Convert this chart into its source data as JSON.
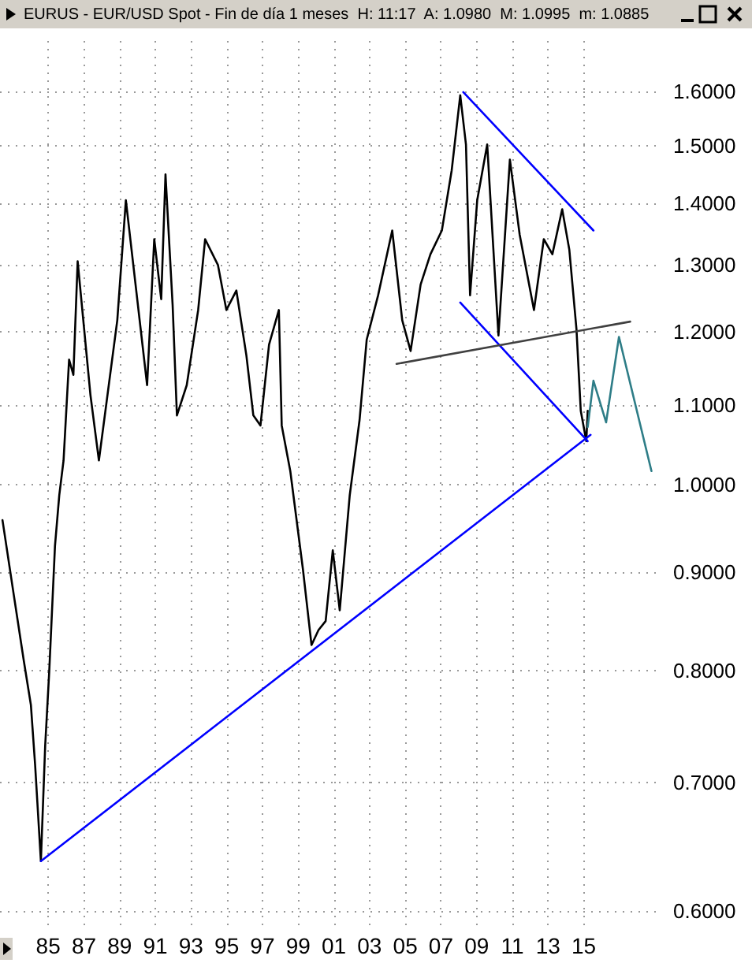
{
  "chart_data": {
    "type": "line",
    "title": "EURUS - EUR/USD Spot - Fin de día 1 meses  H: 11:17  A: 1.0980  M: 1.0995  m: 1.0885",
    "log": "y",
    "grid": true,
    "xlim": [
      1982.3,
      2019.3
    ],
    "xticks": [
      {
        "value": 1985,
        "label": "85"
      },
      {
        "value": 1987,
        "label": "87"
      },
      {
        "value": 1989,
        "label": "89"
      },
      {
        "value": 1991,
        "label": "91"
      },
      {
        "value": 1993,
        "label": "93"
      },
      {
        "value": 1995,
        "label": "95"
      },
      {
        "value": 1997,
        "label": "97"
      },
      {
        "value": 1999,
        "label": "99"
      },
      {
        "value": 2001,
        "label": "01"
      },
      {
        "value": 2003,
        "label": "03"
      },
      {
        "value": 2005,
        "label": "05"
      },
      {
        "value": 2007,
        "label": "07"
      },
      {
        "value": 2009,
        "label": "09"
      },
      {
        "value": 2011,
        "label": "11"
      },
      {
        "value": 2013,
        "label": "13"
      },
      {
        "value": 2015,
        "label": "15"
      }
    ],
    "ylim": [
      0.59,
      1.7
    ],
    "yticks": [
      {
        "value": 0.6,
        "label": "0.6000"
      },
      {
        "value": 0.7,
        "label": "0.7000"
      },
      {
        "value": 0.8,
        "label": "0.8000"
      },
      {
        "value": 0.9,
        "label": "0.9000"
      },
      {
        "value": 1.0,
        "label": "1.0000"
      },
      {
        "value": 1.1,
        "label": "1.1000"
      },
      {
        "value": 1.2,
        "label": "1.2000"
      },
      {
        "value": 1.3,
        "label": "1.3000"
      },
      {
        "value": 1.4,
        "label": "1.4000"
      },
      {
        "value": 1.5,
        "label": "1.5000"
      },
      {
        "value": 1.6,
        "label": "1.6000"
      }
    ],
    "series": [
      {
        "color": "#000000",
        "x": [
          1982.44,
          1983.08,
          1983.63,
          1984.03,
          1984.27,
          1984.59,
          1984.83,
          1985.06,
          1985.38,
          1985.62,
          1985.86,
          1986.17,
          1986.41,
          1986.65,
          1987.37,
          1987.84,
          1988.87,
          1989.35,
          1990.22,
          1990.54,
          1990.94,
          1991.33,
          1991.57,
          1991.97,
          1992.21,
          1992.76,
          1993.4,
          1993.79,
          1994.51,
          1994.98,
          1995.54,
          1996.1,
          1996.49,
          1996.89,
          1997.37,
          1997.92,
          1998.08,
          1998.56,
          1999.27,
          1999.75,
          2000.14,
          2000.54,
          2000.94,
          2001.33,
          2001.89,
          2002.44,
          2002.84,
          2003.48,
          2004.27,
          2004.83,
          2005.3,
          2005.86,
          2006.41,
          2007.05,
          2007.6,
          2008.08,
          2008.4,
          2008.63,
          2009.03,
          2009.59,
          2010.22,
          2010.86,
          2011.41,
          2012.21,
          2012.76,
          2013.24,
          2013.79,
          2014.19,
          2014.59,
          2014.83,
          2015.14,
          2015.22
        ],
        "values": [
          0.958,
          0.875,
          0.81,
          0.768,
          0.714,
          0.637,
          0.731,
          0.8,
          0.929,
          0.987,
          1.029,
          1.161,
          1.14,
          1.306,
          1.112,
          1.029,
          1.217,
          1.405,
          1.195,
          1.126,
          1.341,
          1.248,
          1.449,
          1.239,
          1.086,
          1.126,
          1.232,
          1.341,
          1.3,
          1.232,
          1.261,
          1.167,
          1.086,
          1.073,
          1.182,
          1.232,
          1.073,
          1.016,
          0.903,
          0.825,
          0.84,
          0.849,
          0.924,
          0.86,
          0.987,
          1.08,
          1.189,
          1.254,
          1.355,
          1.217,
          1.173,
          1.27,
          1.317,
          1.355,
          1.456,
          1.593,
          1.502,
          1.254,
          1.405,
          1.502,
          1.195,
          1.475,
          1.348,
          1.232,
          1.341,
          1.317,
          1.39,
          1.324,
          1.204,
          1.092,
          1.053,
          1.092
        ]
      },
      {
        "color": "#0000ff",
        "x": [
          1984.59,
          2015.38
        ],
        "values": [
          0.637,
          1.061
        ]
      },
      {
        "color": "#0000ff",
        "x": [
          2008.25,
          2015.54
        ],
        "values": [
          1.599,
          1.355
        ]
      },
      {
        "color": "#0000ff",
        "x": [
          2008.08,
          2015.22
        ],
        "values": [
          1.243,
          1.053
        ]
      },
      {
        "color": "#404040",
        "x": [
          2004.51,
          2017.6
        ],
        "values": [
          1.155,
          1.215
        ]
      },
      {
        "color": "#2e7d87",
        "x": [
          2015.22,
          2015.54,
          2016.25,
          2016.97,
          2018.79
        ],
        "values": [
          1.071,
          1.132,
          1.077,
          1.193,
          1.016
        ]
      }
    ]
  }
}
